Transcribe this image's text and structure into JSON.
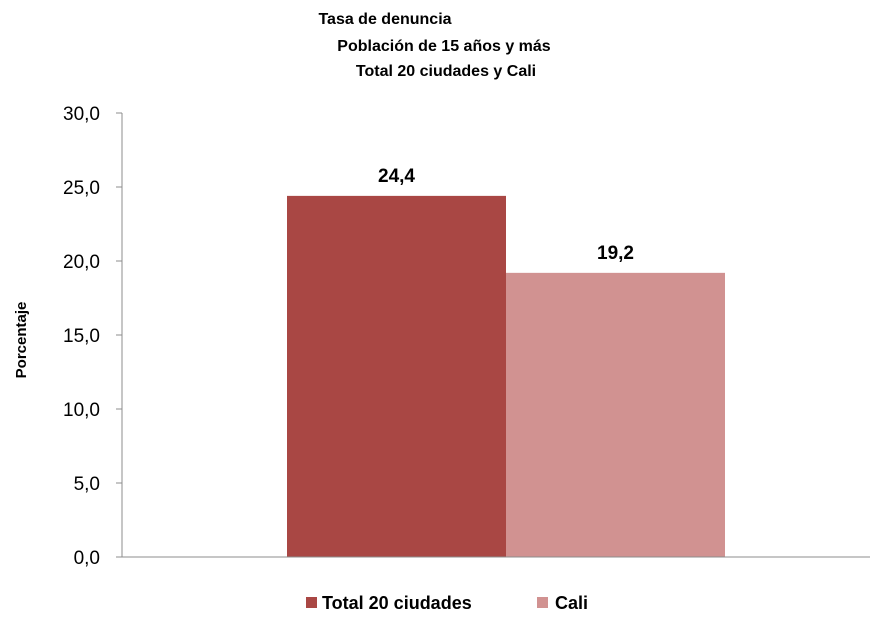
{
  "chart_data": {
    "type": "bar",
    "title_lines": [
      "Tasa de denuncia",
      "Población de 15 años y más",
      "Total 20 ciudades y Cali"
    ],
    "xlabel": "",
    "ylabel": "Porcentaje",
    "ylim": [
      0,
      30
    ],
    "yticks": [
      "0,0",
      "5,0",
      "10,0",
      "15,0",
      "20,0",
      "25,0",
      "30,0"
    ],
    "ytick_values": [
      0,
      5,
      10,
      15,
      20,
      25,
      30
    ],
    "grid": false,
    "legend_position": "bottom",
    "series": [
      {
        "name": "Total 20 ciudades",
        "values": [
          24.4
        ],
        "data_labels": [
          "24,4"
        ],
        "color": "#A94744"
      },
      {
        "name": "Cali",
        "values": [
          19.2
        ],
        "data_labels": [
          "19,2"
        ],
        "color": "#D19291"
      }
    ]
  }
}
